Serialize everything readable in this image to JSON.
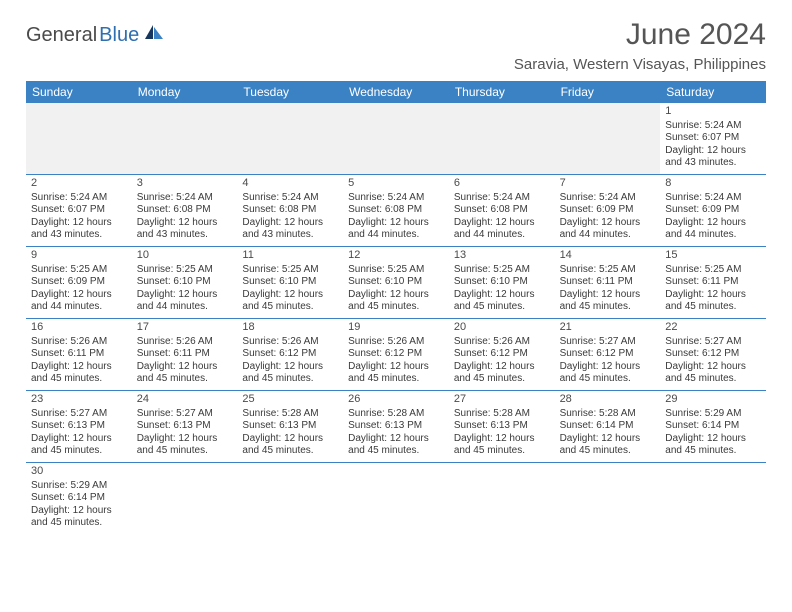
{
  "brand": {
    "name_part1": "General",
    "name_part2": "Blue",
    "color_dark": "#4a4a4a",
    "color_blue": "#2f6fb0"
  },
  "header": {
    "title": "June 2024",
    "location": "Saravia, Western Visayas, Philippines"
  },
  "theme": {
    "header_bg": "#3b82c4",
    "header_text": "#ffffff",
    "cell_border": "#3b82c4",
    "blank_bg": "#f1f1f1",
    "body_text": "#3a3a3a"
  },
  "weekdays": [
    "Sunday",
    "Monday",
    "Tuesday",
    "Wednesday",
    "Thursday",
    "Friday",
    "Saturday"
  ],
  "leading_blanks": 6,
  "days": [
    {
      "n": 1,
      "sunrise": "5:24 AM",
      "sunset": "6:07 PM",
      "daylight": "12 hours and 43 minutes."
    },
    {
      "n": 2,
      "sunrise": "5:24 AM",
      "sunset": "6:07 PM",
      "daylight": "12 hours and 43 minutes."
    },
    {
      "n": 3,
      "sunrise": "5:24 AM",
      "sunset": "6:08 PM",
      "daylight": "12 hours and 43 minutes."
    },
    {
      "n": 4,
      "sunrise": "5:24 AM",
      "sunset": "6:08 PM",
      "daylight": "12 hours and 43 minutes."
    },
    {
      "n": 5,
      "sunrise": "5:24 AM",
      "sunset": "6:08 PM",
      "daylight": "12 hours and 44 minutes."
    },
    {
      "n": 6,
      "sunrise": "5:24 AM",
      "sunset": "6:08 PM",
      "daylight": "12 hours and 44 minutes."
    },
    {
      "n": 7,
      "sunrise": "5:24 AM",
      "sunset": "6:09 PM",
      "daylight": "12 hours and 44 minutes."
    },
    {
      "n": 8,
      "sunrise": "5:24 AM",
      "sunset": "6:09 PM",
      "daylight": "12 hours and 44 minutes."
    },
    {
      "n": 9,
      "sunrise": "5:25 AM",
      "sunset": "6:09 PM",
      "daylight": "12 hours and 44 minutes."
    },
    {
      "n": 10,
      "sunrise": "5:25 AM",
      "sunset": "6:10 PM",
      "daylight": "12 hours and 44 minutes."
    },
    {
      "n": 11,
      "sunrise": "5:25 AM",
      "sunset": "6:10 PM",
      "daylight": "12 hours and 45 minutes."
    },
    {
      "n": 12,
      "sunrise": "5:25 AM",
      "sunset": "6:10 PM",
      "daylight": "12 hours and 45 minutes."
    },
    {
      "n": 13,
      "sunrise": "5:25 AM",
      "sunset": "6:10 PM",
      "daylight": "12 hours and 45 minutes."
    },
    {
      "n": 14,
      "sunrise": "5:25 AM",
      "sunset": "6:11 PM",
      "daylight": "12 hours and 45 minutes."
    },
    {
      "n": 15,
      "sunrise": "5:25 AM",
      "sunset": "6:11 PM",
      "daylight": "12 hours and 45 minutes."
    },
    {
      "n": 16,
      "sunrise": "5:26 AM",
      "sunset": "6:11 PM",
      "daylight": "12 hours and 45 minutes."
    },
    {
      "n": 17,
      "sunrise": "5:26 AM",
      "sunset": "6:11 PM",
      "daylight": "12 hours and 45 minutes."
    },
    {
      "n": 18,
      "sunrise": "5:26 AM",
      "sunset": "6:12 PM",
      "daylight": "12 hours and 45 minutes."
    },
    {
      "n": 19,
      "sunrise": "5:26 AM",
      "sunset": "6:12 PM",
      "daylight": "12 hours and 45 minutes."
    },
    {
      "n": 20,
      "sunrise": "5:26 AM",
      "sunset": "6:12 PM",
      "daylight": "12 hours and 45 minutes."
    },
    {
      "n": 21,
      "sunrise": "5:27 AM",
      "sunset": "6:12 PM",
      "daylight": "12 hours and 45 minutes."
    },
    {
      "n": 22,
      "sunrise": "5:27 AM",
      "sunset": "6:12 PM",
      "daylight": "12 hours and 45 minutes."
    },
    {
      "n": 23,
      "sunrise": "5:27 AM",
      "sunset": "6:13 PM",
      "daylight": "12 hours and 45 minutes."
    },
    {
      "n": 24,
      "sunrise": "5:27 AM",
      "sunset": "6:13 PM",
      "daylight": "12 hours and 45 minutes."
    },
    {
      "n": 25,
      "sunrise": "5:28 AM",
      "sunset": "6:13 PM",
      "daylight": "12 hours and 45 minutes."
    },
    {
      "n": 26,
      "sunrise": "5:28 AM",
      "sunset": "6:13 PM",
      "daylight": "12 hours and 45 minutes."
    },
    {
      "n": 27,
      "sunrise": "5:28 AM",
      "sunset": "6:13 PM",
      "daylight": "12 hours and 45 minutes."
    },
    {
      "n": 28,
      "sunrise": "5:28 AM",
      "sunset": "6:14 PM",
      "daylight": "12 hours and 45 minutes."
    },
    {
      "n": 29,
      "sunrise": "5:29 AM",
      "sunset": "6:14 PM",
      "daylight": "12 hours and 45 minutes."
    },
    {
      "n": 30,
      "sunrise": "5:29 AM",
      "sunset": "6:14 PM",
      "daylight": "12 hours and 45 minutes."
    }
  ],
  "labels": {
    "sunrise_prefix": "Sunrise: ",
    "sunset_prefix": "Sunset: ",
    "daylight_prefix": "Daylight: "
  }
}
